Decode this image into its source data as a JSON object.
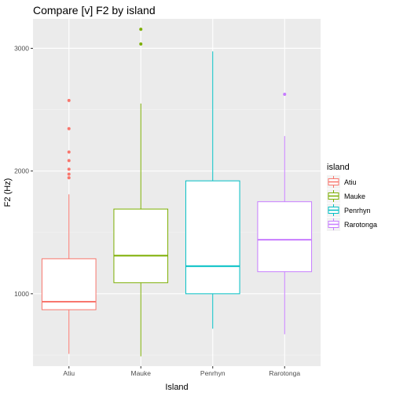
{
  "chart_data": {
    "type": "boxplot",
    "title": "Compare [v] F2 by island",
    "xlabel": "Island",
    "ylabel": "F2 (Hz)",
    "ylim": [
      410,
      3240
    ],
    "yticks": [
      1000,
      2000,
      3000
    ],
    "categories": [
      "Atiu",
      "Mauke",
      "Penrhyn",
      "Rarotonga"
    ],
    "series": [
      {
        "name": "Atiu",
        "color": "#F8766D",
        "whisker_low": 510,
        "q1": 870,
        "median": 935,
        "q3": 1285,
        "whisker_high": 1810,
        "outliers": [
          1945,
          1975,
          2015,
          2085,
          2155,
          2345,
          2575
        ]
      },
      {
        "name": "Mauke",
        "color": "#7CAE00",
        "whisker_low": 490,
        "q1": 1090,
        "median": 1310,
        "q3": 1690,
        "whisker_high": 2550,
        "outliers": [
          3035,
          3155
        ]
      },
      {
        "name": "Penrhyn",
        "color": "#00BFC4",
        "whisker_low": 715,
        "q1": 1000,
        "median": 1225,
        "q3": 1920,
        "whisker_high": 2975,
        "outliers": []
      },
      {
        "name": "Rarotonga",
        "color": "#C77CFF",
        "whisker_low": 670,
        "q1": 1180,
        "median": 1440,
        "q3": 1750,
        "whisker_high": 2285,
        "outliers": [
          2625
        ]
      }
    ],
    "legend": {
      "title": "island",
      "position": "right"
    },
    "grid": true
  }
}
